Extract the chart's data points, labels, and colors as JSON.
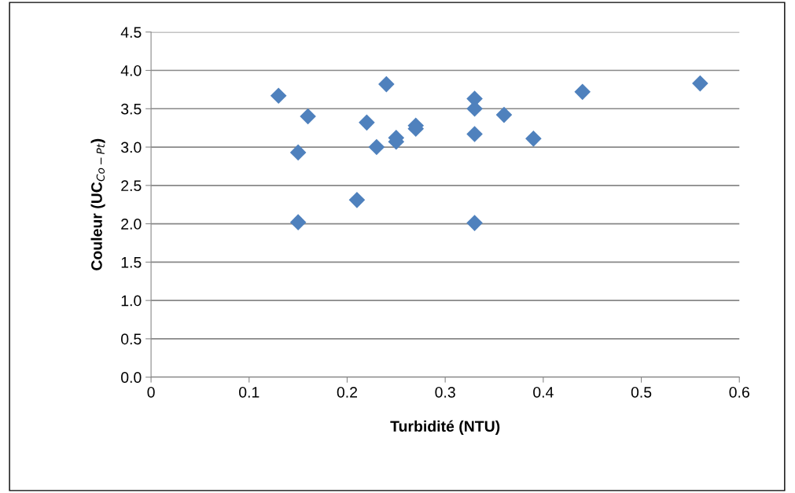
{
  "chart_data": {
    "type": "scatter",
    "xlabel": "Turbidité (NTU)",
    "ylabel": "Couleur (UC$_{Co−Pt}$)",
    "x": [
      0.13,
      0.16,
      0.15,
      0.15,
      0.21,
      0.22,
      0.23,
      0.24,
      0.25,
      0.25,
      0.27,
      0.27,
      0.33,
      0.33,
      0.33,
      0.33,
      0.36,
      0.39,
      0.44,
      0.56
    ],
    "series": [
      {
        "color": "#4f81bd",
        "values": [
          3.67,
          3.4,
          2.93,
          2.02,
          2.31,
          3.32,
          3.0,
          3.82,
          3.12,
          3.07,
          3.28,
          3.24,
          3.63,
          3.5,
          3.17,
          2.01,
          3.42,
          3.11,
          3.72,
          3.83
        ]
      }
    ],
    "xlim": [
      0,
      0.6
    ],
    "ylim": [
      0,
      4.5
    ],
    "xticks": [
      0,
      0.1,
      0.2,
      0.3,
      0.4,
      0.5,
      0.6
    ],
    "yticks": [
      {
        "value": 0,
        "label": "0.0"
      },
      {
        "value": 0.5,
        "label": "0.5"
      },
      {
        "value": 1,
        "label": "1.0"
      },
      {
        "value": 1.5,
        "label": "1.5"
      },
      {
        "value": 2,
        "label": "2.0"
      },
      {
        "value": 2.5,
        "label": "2.5"
      },
      {
        "value": 3,
        "label": "3.0"
      },
      {
        "value": 3.5,
        "label": "3.5"
      },
      {
        "value": 4,
        "label": "4.0"
      },
      {
        "value": 4.5,
        "label": "4.5"
      }
    ],
    "grid": "y",
    "marker": "diamond"
  }
}
